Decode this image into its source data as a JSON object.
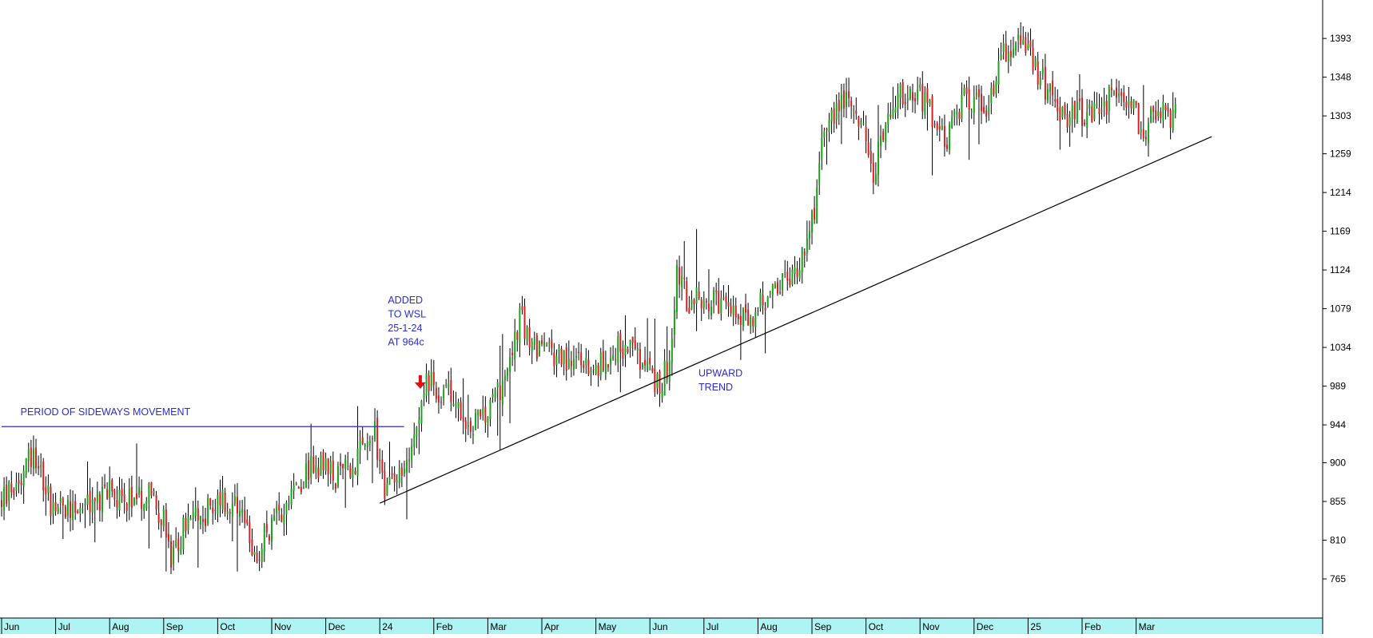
{
  "chart_data": {
    "type": "candlestick",
    "title": "",
    "xlabel": "",
    "ylabel": "",
    "ylim": [
      720,
      1440
    ],
    "y_ticks": [
      765,
      810,
      855,
      900,
      944,
      989,
      1034,
      1079,
      1124,
      1169,
      1214,
      1259,
      1303,
      1348,
      1393
    ],
    "x_ticks": [
      "Jun",
      "Jul",
      "Aug",
      "Sep",
      "Oct",
      "Nov",
      "Dec",
      "24",
      "Feb",
      "Mar",
      "Apr",
      "May",
      "Jun",
      "Jul",
      "Aug",
      "Sep",
      "Oct",
      "Nov",
      "Dec",
      "25",
      "Feb",
      "Mar"
    ],
    "grid": false,
    "colors": {
      "up": "#1aa21a",
      "down": "#d42020",
      "wick": "#000000",
      "annotation": "#2b2bd6",
      "axis_band": "#aef4f4",
      "marker": "#e01010"
    },
    "price_path": [
      {
        "month": 0,
        "price": 855
      },
      {
        "month": 0.3,
        "price": 880
      },
      {
        "month": 0.6,
        "price": 918
      },
      {
        "month": 0.9,
        "price": 855
      },
      {
        "month": 1.2,
        "price": 850
      },
      {
        "month": 1.6,
        "price": 848
      },
      {
        "month": 2.0,
        "price": 865
      },
      {
        "month": 2.4,
        "price": 860
      },
      {
        "month": 2.8,
        "price": 865
      },
      {
        "month": 3.0,
        "price": 830
      },
      {
        "month": 3.15,
        "price": 780
      },
      {
        "month": 3.4,
        "price": 830
      },
      {
        "month": 3.7,
        "price": 835
      },
      {
        "month": 4.0,
        "price": 860
      },
      {
        "month": 4.4,
        "price": 840
      },
      {
        "month": 4.7,
        "price": 790
      },
      {
        "month": 5.0,
        "price": 830
      },
      {
        "month": 5.4,
        "price": 870
      },
      {
        "month": 5.8,
        "price": 900
      },
      {
        "month": 6.2,
        "price": 880
      },
      {
        "month": 6.6,
        "price": 905
      },
      {
        "month": 6.9,
        "price": 935
      },
      {
        "month": 7.1,
        "price": 870
      },
      {
        "month": 7.4,
        "price": 880
      },
      {
        "month": 7.6,
        "price": 935
      },
      {
        "month": 7.85,
        "price": 995
      },
      {
        "month": 8.1,
        "price": 985
      },
      {
        "month": 8.4,
        "price": 975
      },
      {
        "month": 8.7,
        "price": 945
      },
      {
        "month": 9.0,
        "price": 955
      },
      {
        "month": 9.3,
        "price": 1000
      },
      {
        "month": 9.6,
        "price": 1065
      },
      {
        "month": 9.9,
        "price": 1035
      },
      {
        "month": 10.2,
        "price": 1025
      },
      {
        "month": 10.6,
        "price": 1020
      },
      {
        "month": 11.0,
        "price": 1005
      },
      {
        "month": 11.3,
        "price": 1030
      },
      {
        "month": 11.6,
        "price": 1040
      },
      {
        "month": 11.9,
        "price": 1005
      },
      {
        "month": 12.2,
        "price": 990
      },
      {
        "month": 12.4,
        "price": 1030
      },
      {
        "month": 12.5,
        "price": 1130
      },
      {
        "month": 12.7,
        "price": 1085
      },
      {
        "month": 13.0,
        "price": 1095
      },
      {
        "month": 13.4,
        "price": 1075
      },
      {
        "month": 13.8,
        "price": 1065
      },
      {
        "month": 14.1,
        "price": 1085
      },
      {
        "month": 14.4,
        "price": 1100
      },
      {
        "month": 14.7,
        "price": 1125
      },
      {
        "month": 14.9,
        "price": 1160
      },
      {
        "month": 15.1,
        "price": 1210
      },
      {
        "month": 15.2,
        "price": 1290
      },
      {
        "month": 15.5,
        "price": 1320
      },
      {
        "month": 15.8,
        "price": 1325
      },
      {
        "month": 16.0,
        "price": 1270
      },
      {
        "month": 16.1,
        "price": 1230
      },
      {
        "month": 16.4,
        "price": 1300
      },
      {
        "month": 16.8,
        "price": 1340
      },
      {
        "month": 17.1,
        "price": 1320
      },
      {
        "month": 17.5,
        "price": 1270
      },
      {
        "month": 17.8,
        "price": 1320
      },
      {
        "month": 18.2,
        "price": 1310
      },
      {
        "month": 18.5,
        "price": 1370
      },
      {
        "month": 18.8,
        "price": 1395
      },
      {
        "month": 19.1,
        "price": 1360
      },
      {
        "month": 19.4,
        "price": 1330
      },
      {
        "month": 19.7,
        "price": 1300
      },
      {
        "month": 20.1,
        "price": 1310
      },
      {
        "month": 20.5,
        "price": 1320
      },
      {
        "month": 20.8,
        "price": 1325
      },
      {
        "month": 21.1,
        "price": 1290
      },
      {
        "month": 21.4,
        "price": 1300
      },
      {
        "month": 21.6,
        "price": 1305
      },
      {
        "month": 21.75,
        "price": 1300
      }
    ],
    "trendlines": [
      {
        "name": "sideways",
        "from": {
          "month": 0,
          "price": 942
        },
        "to": {
          "month": 7.45,
          "price": 942
        }
      },
      {
        "name": "upward",
        "from": {
          "month": 7.0,
          "price": 853
        },
        "to": {
          "month": 22.4,
          "price": 1279
        }
      }
    ],
    "annotations": [
      {
        "name": "sideways-label",
        "lines": [
          "PERIOD OF SIDEWAYS MOVEMENT"
        ],
        "at": {
          "month": 0.35,
          "price": 955
        }
      },
      {
        "name": "added-label",
        "lines": [
          "ADDED",
          "TO WSL",
          "25-1-24",
          "AT 964c"
        ],
        "at": {
          "month": 7.15,
          "price": 1085
        }
      },
      {
        "name": "upward-label",
        "lines": [
          "UPWARD",
          "TREND"
        ],
        "at": {
          "month": 12.9,
          "price": 1000
        }
      }
    ],
    "marker": {
      "type": "down-arrow",
      "at": {
        "month": 7.75,
        "price": 985
      }
    }
  }
}
